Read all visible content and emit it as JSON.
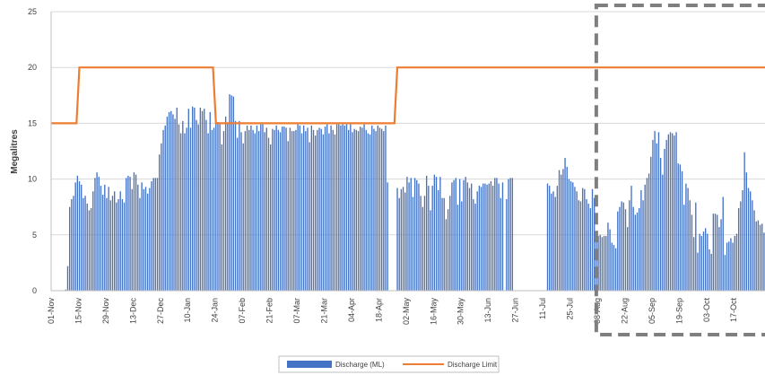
{
  "chart_data": {
    "type": "bar",
    "ylabel": "Megalitres",
    "ylim": [
      0,
      25
    ],
    "yticks": [
      "0",
      "5",
      "10",
      "15",
      "20",
      "25"
    ],
    "xlim": [
      0,
      366
    ],
    "xtick_labels": [
      "01-Nov",
      "15-Nov",
      "29-Nov",
      "13-Dec",
      "27-Dec",
      "10-Jan",
      "24-Jan",
      "07-Feb",
      "21-Feb",
      "07-Mar",
      "21-Mar",
      "04-Apr",
      "18-Apr",
      "02-May",
      "16-May",
      "30-May",
      "13-Jun",
      "27-Jun",
      "11-Jul",
      "25-Jul",
      "08-Aug",
      "22-Aug",
      "05-Sep",
      "19-Sep",
      "03-Oct",
      "17-Oct"
    ],
    "xtick_days": [
      0,
      14,
      28,
      42,
      56,
      70,
      84,
      98,
      112,
      126,
      140,
      154,
      168,
      182,
      196,
      210,
      224,
      238,
      252,
      266,
      280,
      294,
      308,
      322,
      336,
      350
    ],
    "grid": true,
    "legend_position": "bottom",
    "colors": {
      "discharge": "#4472C4",
      "limit": "#ED7D31",
      "highlight": "#7F7F7F",
      "grid": "#D9D9D9",
      "axis": "#BFBFBF"
    },
    "series": [
      {
        "name": "Discharge (ML)",
        "type": "bar",
        "x_start_day": 0,
        "values": [
          0,
          0,
          0,
          0,
          0,
          0,
          0,
          0.1,
          2.2,
          7.5,
          8.2,
          8.5,
          9.7,
          10.3,
          9.8,
          9.5,
          8.3,
          8.5,
          7.8,
          7.2,
          7.4,
          8.9,
          10.1,
          10.6,
          10.2,
          9.4,
          8.6,
          9.5,
          8.3,
          9.3,
          8.1,
          8.5,
          8.9,
          7.9,
          8.2,
          8.9,
          8.2,
          7.9,
          10.1,
          10.3,
          10.2,
          9.1,
          10.6,
          10.4,
          9.5,
          8.3,
          9.7,
          9.1,
          9.3,
          8.7,
          9.2,
          9.8,
          10.1,
          10.1,
          10.1,
          12.2,
          13.2,
          14.4,
          14.8,
          15.6,
          16,
          16.1,
          15.8,
          15.4,
          16.4,
          14.9,
          14.1,
          15.2,
          14.1,
          14.6,
          16.3,
          14.6,
          16.5,
          16.4,
          15.3,
          14.9,
          16.4,
          16.1,
          16.3,
          15.3,
          14.1,
          16,
          14.4,
          14.6,
          15.7,
          15.1,
          14.9,
          13.1,
          14.3,
          15.6,
          15,
          17.6,
          17.5,
          17.4,
          15.2,
          13.7,
          15.2,
          14.2,
          13.2,
          14.3,
          14.8,
          14.4,
          14.8,
          14.4,
          14.1,
          14.8,
          14.3,
          14.9,
          14.9,
          14.2,
          14.6,
          13.7,
          13.1,
          14.5,
          14.4,
          14.8,
          14.4,
          14.2,
          14.7,
          14.7,
          14.6,
          13.4,
          14.6,
          14.3,
          14.3,
          14.4,
          14.9,
          14.8,
          14.1,
          14.8,
          14.3,
          14.6,
          13.3,
          14.8,
          14.4,
          13.9,
          14.4,
          14.6,
          14.5,
          14,
          14.7,
          14.9,
          14.1,
          14.8,
          14.4,
          14,
          14.9,
          14.9,
          14.8,
          14.9,
          14.8,
          14.9,
          14.4,
          14.9,
          14.2,
          14.5,
          14.4,
          14.3,
          14.7,
          14.6,
          14.9,
          14.4,
          14.1,
          14,
          14.8,
          14.5,
          14.3,
          14.8,
          14.6,
          14.5,
          14.3,
          14.8,
          9.7,
          0,
          0,
          0,
          0,
          9.2,
          8.3,
          9.1,
          9.3,
          8.8,
          10.2,
          9.7,
          10.1,
          8.4,
          10.1,
          9.9,
          9.6,
          8.5,
          7.5,
          8.5,
          10.3,
          9.4,
          7.2,
          9.4,
          10.4,
          10.2,
          9,
          10.2,
          8.3,
          8.3,
          6.4,
          7.3,
          8.5,
          9.7,
          9.9,
          10.1,
          7.7,
          10,
          8,
          9.9,
          10.2,
          9.7,
          9.2,
          9.6,
          8.2,
          7.8,
          8.9,
          9.4,
          9.3,
          9.6,
          9.6,
          9.5,
          9.6,
          9.8,
          9.4,
          10.1,
          10.1,
          9.6,
          8.3,
          9.7,
          0,
          8.2,
          10,
          10.1,
          10.1,
          0,
          0,
          0,
          0,
          0,
          0,
          0,
          0,
          0,
          0,
          0,
          0,
          0,
          0,
          0,
          0,
          0,
          9.6,
          9.4,
          8.7,
          8.9,
          8.4,
          9.4,
          10.8,
          10.4,
          10.9,
          11.9,
          11.1,
          10,
          9.8,
          9.7,
          9.3,
          8.9,
          8.1,
          8,
          9.2,
          9.1,
          8.2,
          7.8,
          7.4,
          9.1,
          8.3,
          5,
          4.9,
          5,
          4.8,
          4.9,
          4.9,
          6.1,
          5.5,
          4.3,
          4.1,
          3.8,
          7.1,
          7.5,
          8,
          7.9,
          7.3,
          5.7,
          8.1,
          9.4,
          7.5,
          6.8,
          7,
          7.4,
          9,
          8.1,
          9.5,
          10.1,
          10.5,
          12,
          13.5,
          14.3,
          13.2,
          14.2,
          11.9,
          10.4,
          12.7,
          13.5,
          14,
          14.2,
          14.1,
          13.9,
          14.2,
          11.4,
          11.3,
          10.7,
          7.7,
          9.6,
          9.2,
          8.1,
          6.8,
          4.8,
          7.9,
          3.4,
          5.1,
          4.9,
          5.3,
          5.6,
          5.1,
          3.7,
          3.3,
          6.9,
          6.9,
          6.8,
          5.7,
          6.4,
          8.4,
          3.2,
          4.3,
          4.4,
          4.7,
          4.3,
          4.9,
          5.1,
          7.4,
          8,
          9,
          12.4,
          10.6,
          9.2,
          8.9,
          8.1,
          7.2,
          6.2,
          6.3,
          5.9,
          6,
          5.2,
          4.9,
          4.9,
          4.8,
          4.4,
          4.1,
          3.8,
          2.3,
          0,
          0,
          0,
          0,
          0,
          0,
          0,
          0,
          0,
          0,
          0,
          0,
          0
        ]
      },
      {
        "name": "Discharge Limit",
        "type": "step-line",
        "steps": [
          {
            "x": 0,
            "y": 15
          },
          {
            "x": 13,
            "y": 15
          },
          {
            "x": 14.5,
            "y": 20
          },
          {
            "x": 83,
            "y": 20
          },
          {
            "x": 84.5,
            "y": 15
          },
          {
            "x": 176,
            "y": 15
          },
          {
            "x": 177.5,
            "y": 20
          },
          {
            "x": 366,
            "y": 20
          }
        ]
      }
    ],
    "highlight_box": {
      "x_start_day": 279.5,
      "style": "dashed"
    }
  }
}
